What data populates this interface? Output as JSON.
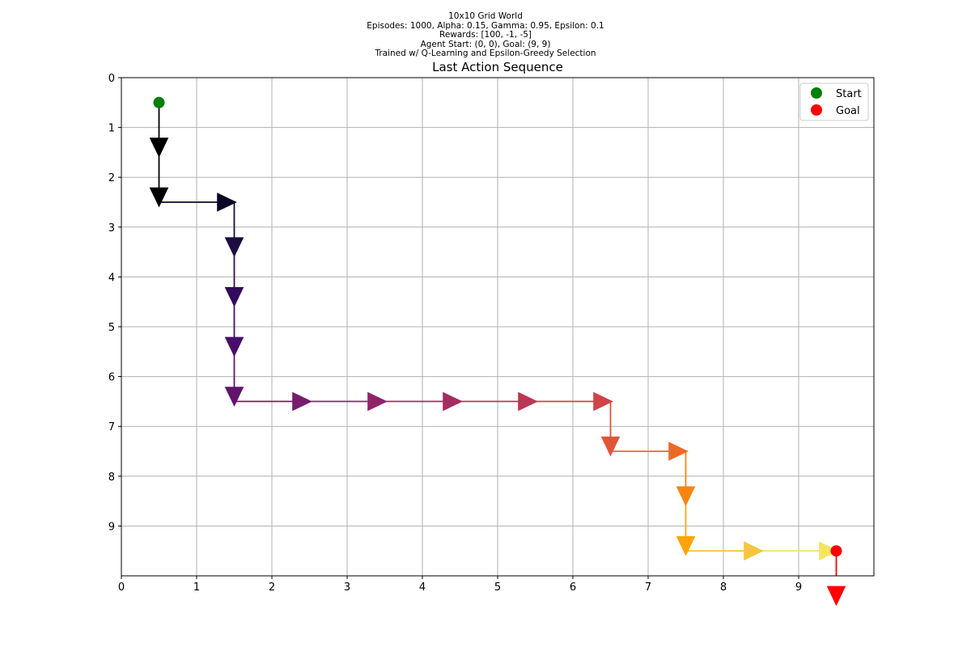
{
  "header": {
    "lines": [
      "10x10 Grid World",
      "Episodes: 1000, Alpha: 0.15, Gamma: 0.95, Epsilon: 0.1",
      "Rewards: [100, -1, -5]",
      "Agent Start: (0, 0), Goal: (9, 9)",
      "Trained w/ Q-Learning and Epsilon-Greedy Selection"
    ]
  },
  "chart_data": {
    "type": "line",
    "title": "Last Action Sequence",
    "xlabel": "",
    "ylabel": "",
    "xlim": [
      0,
      10
    ],
    "ylim": [
      10,
      0
    ],
    "y_inverted": true,
    "grid": true,
    "x_ticks": [
      0,
      1,
      2,
      3,
      4,
      5,
      6,
      7,
      8,
      9
    ],
    "y_ticks": [
      0,
      1,
      2,
      3,
      4,
      5,
      6,
      7,
      8,
      9
    ],
    "start": {
      "x": 0.5,
      "y": 0.5,
      "color": "#008000",
      "label": "Start"
    },
    "goal": {
      "x": 9.5,
      "y": 9.5,
      "color": "#ff0000",
      "label": "Goal"
    },
    "legend": {
      "placement": "top-right",
      "entries": [
        "Start",
        "Goal"
      ]
    },
    "path": [
      [
        0.5,
        0.5
      ],
      [
        0.5,
        1.5
      ],
      [
        0.5,
        2.5
      ],
      [
        1.5,
        2.5
      ],
      [
        1.5,
        3.5
      ],
      [
        1.5,
        4.5
      ],
      [
        1.5,
        5.5
      ],
      [
        1.5,
        6.5
      ],
      [
        2.5,
        6.5
      ],
      [
        3.5,
        6.5
      ],
      [
        4.5,
        6.5
      ],
      [
        5.5,
        6.5
      ],
      [
        6.5,
        6.5
      ],
      [
        6.5,
        7.5
      ],
      [
        7.5,
        7.5
      ],
      [
        7.5,
        8.5
      ],
      [
        7.5,
        9.5
      ],
      [
        8.5,
        9.5
      ],
      [
        9.5,
        9.5
      ],
      [
        9.5,
        10.5
      ]
    ],
    "actions": [
      "down",
      "down",
      "right",
      "down",
      "down",
      "down",
      "down",
      "right",
      "right",
      "right",
      "right",
      "right",
      "down",
      "right",
      "down",
      "down",
      "right",
      "right",
      "down"
    ],
    "step_colors": [
      "#000004",
      "#000004",
      "#0b0724",
      "#1b0c41",
      "#320a5e",
      "#4a0c6b",
      "#61136e",
      "#781c6d",
      "#8f2469",
      "#a52c60",
      "#bb3754",
      "#cf4446",
      "#e05536",
      "#ee6a24",
      "#f8850f",
      "#fca50a",
      "#f6c53b",
      "#f2e661",
      "#ff0000"
    ]
  }
}
